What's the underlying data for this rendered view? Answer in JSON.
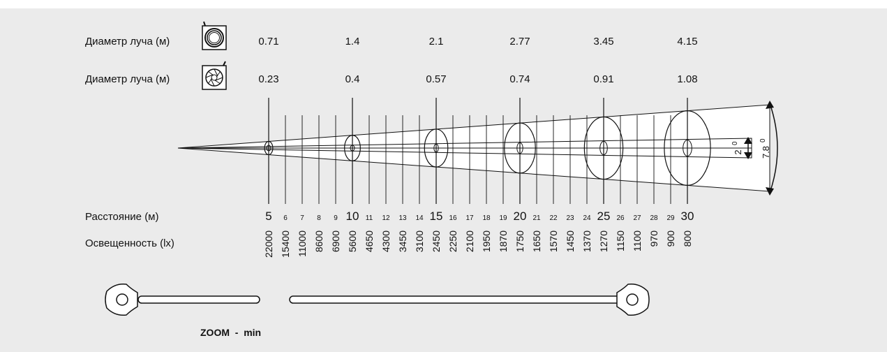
{
  "colors": {
    "panel": "#ebebeb",
    "ink": "#111111",
    "beam_fill": "#ffffff"
  },
  "beam_rows": [
    {
      "label": "Диаметр луча (м)",
      "icon": "wide-beam-lens-icon",
      "values": [
        "0.71",
        "1.4",
        "2.1",
        "2.77",
        "3.45",
        "4.15"
      ]
    },
    {
      "label": "Диаметр луча (м)",
      "icon": "narrow-beam-iris-icon",
      "values": [
        "0.23",
        "0.4",
        "0.57",
        "0.74",
        "0.91",
        "1.08"
      ]
    }
  ],
  "distance": {
    "label": "Расстояние (м)",
    "ticks": [
      "5",
      "6",
      "7",
      "8",
      "9",
      "10",
      "11",
      "12",
      "13",
      "14",
      "15",
      "16",
      "17",
      "18",
      "19",
      "20",
      "21",
      "22",
      "23",
      "24",
      "25",
      "26",
      "27",
      "28",
      "29",
      "30"
    ]
  },
  "illuminance": {
    "label": "Освещенность (lx)",
    "values": [
      "22000",
      "15400",
      "11000",
      "8600",
      "6900",
      "5600",
      "4650",
      "4300",
      "3450",
      "3100",
      "2450",
      "2250",
      "2100",
      "1950",
      "1870",
      "1750",
      "1650",
      "1570",
      "1450",
      "1370",
      "1270",
      "1150",
      "1100",
      "970",
      "900",
      "800"
    ]
  },
  "angles": {
    "narrow": "2",
    "wide": "7.8",
    "unit": "0"
  },
  "zoom": {
    "label": "ZOOM  -  min",
    "min_position": 0
  }
}
